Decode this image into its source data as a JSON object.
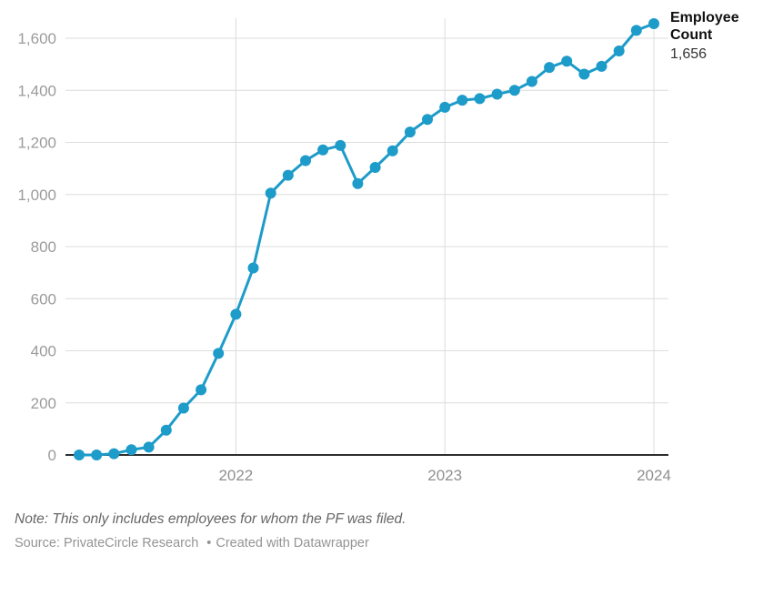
{
  "chart_data": {
    "type": "line",
    "series_label": "Employee Count",
    "end_value_label": "1,656",
    "x": [
      "2021-04",
      "2021-05",
      "2021-06",
      "2021-07",
      "2021-08",
      "2021-09",
      "2021-10",
      "2021-11",
      "2021-12",
      "2022-01",
      "2022-02",
      "2022-03",
      "2022-04",
      "2022-05",
      "2022-06",
      "2022-07",
      "2022-08",
      "2022-09",
      "2022-10",
      "2022-11",
      "2022-12",
      "2023-01",
      "2023-02",
      "2023-03",
      "2023-04",
      "2023-05",
      "2023-06",
      "2023-07",
      "2023-08",
      "2023-09",
      "2023-10",
      "2023-11",
      "2023-12",
      "2024-01"
    ],
    "values": [
      0,
      0,
      5,
      20,
      30,
      95,
      180,
      250,
      390,
      540,
      718,
      1005,
      1074,
      1130,
      1171,
      1188,
      1042,
      1104,
      1168,
      1240,
      1288,
      1335,
      1362,
      1368,
      1385,
      1400,
      1434,
      1488,
      1512,
      1462,
      1492,
      1551,
      1630,
      1656
    ],
    "ylim": [
      0,
      1600
    ],
    "yticks": [
      0,
      200,
      400,
      600,
      800,
      1000,
      1200,
      1400,
      1600
    ],
    "ytick_labels": [
      "0",
      "200",
      "400",
      "600",
      "800",
      "1,000",
      "1,200",
      "1,400",
      "1,600"
    ],
    "xticks": [
      "2022",
      "2023",
      "2024"
    ],
    "grid": true,
    "legend_position": "end-of-line",
    "line_color": "#1d9bc9",
    "marker_color": "#1d9bc9",
    "grid_color": "#dcdcdc",
    "axis_color": "#2e2e2e"
  },
  "footer": {
    "note": "Note: This only includes employees for whom the PF was filed.",
    "source": "Source: PrivateCircle Research",
    "separator": "•",
    "attribution": "Created with Datawrapper"
  }
}
